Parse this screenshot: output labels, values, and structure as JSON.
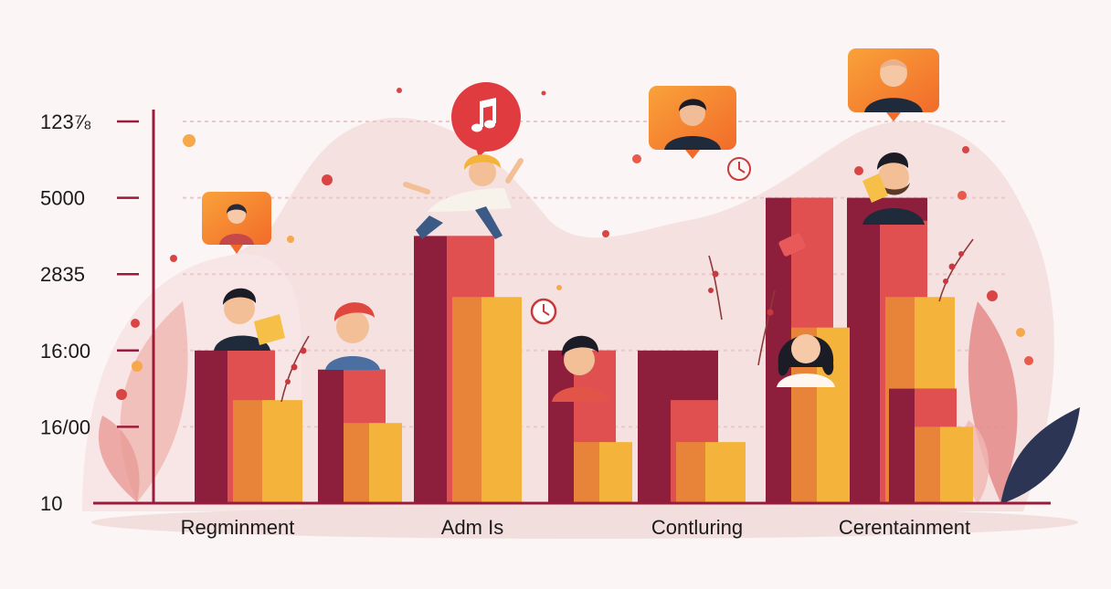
{
  "chart_data": {
    "type": "bar",
    "title": "",
    "xlabel": "",
    "ylabel": "",
    "y_tick_labels": [
      "10",
      "16/00",
      "16:00",
      "2835",
      "5000",
      "123⅞"
    ],
    "categories": [
      "Regminment",
      "Adm Is",
      "Contluring",
      "Cerentainment"
    ],
    "series": [
      {
        "color": "#8e1f3c",
        "values": [
          2.0,
          3.5,
          2.0,
          4.0
        ]
      },
      {
        "color": "#e05050",
        "values": [
          2.0,
          3.5,
          1.35,
          3.7
        ]
      },
      {
        "color": "#f4b43c",
        "values": [
          1.35,
          2.7,
          0.8,
          2.7
        ]
      }
    ],
    "secondary_series": [
      {
        "color": "#8e1f3c",
        "values": [
          1.75,
          2.0,
          4.0,
          1.5
        ]
      },
      {
        "color": "#e05050",
        "values": [
          1.75,
          2.0,
          4.0,
          1.5
        ]
      },
      {
        "color": "#f4b43c",
        "values": [
          1.05,
          0.8,
          2.3,
          1.0
        ]
      }
    ],
    "ylim": [
      0,
      5
    ],
    "grid": true,
    "legend": "none"
  },
  "colors": {
    "axis": "#9b1b3a",
    "maroon": "#8e1f3c",
    "red": "#e05050",
    "orange": "#e8843a",
    "yellow": "#f4b43c",
    "background_blob": "#f6e1e1",
    "leaf_pink": "#e9a3a3",
    "leaf_navy": "#2c3553"
  },
  "decorations": {
    "music_bubble_icon": "music-note-icon",
    "avatar_cards": [
      "avatar-card-woman",
      "avatar-card-man",
      "avatar-card-bald-man"
    ]
  }
}
